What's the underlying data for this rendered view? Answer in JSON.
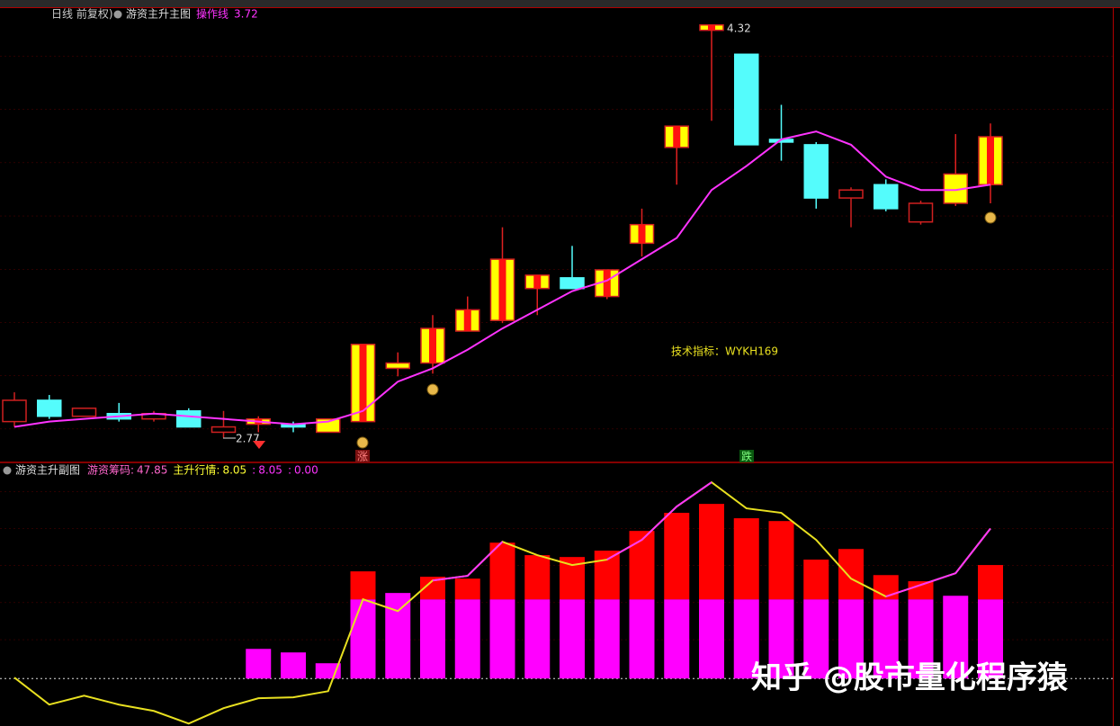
{
  "chart_data": [
    {
      "type": "candlestick",
      "period": "日线 前复权)",
      "title": "游资主升主图",
      "ylim": [
        2.68,
        4.38
      ],
      "open": [
        2.83,
        2.91,
        2.85,
        2.86,
        2.84,
        2.87,
        2.79,
        2.82,
        2.82,
        2.79,
        2.83,
        3.03,
        3.05,
        3.17,
        3.21,
        3.33,
        3.37,
        3.3,
        3.5,
        3.86,
        4.3,
        4.21,
        3.89,
        3.87,
        3.67,
        3.72,
        3.58,
        3.65,
        3.72
      ],
      "high": [
        2.94,
        2.93,
        2.88,
        2.9,
        2.87,
        2.88,
        2.87,
        2.85,
        2.83,
        2.84,
        3.12,
        3.09,
        3.23,
        3.3,
        3.56,
        3.38,
        3.49,
        3.4,
        3.63,
        3.94,
        4.32,
        4.21,
        4.02,
        3.88,
        3.71,
        3.74,
        3.66,
        3.91,
        3.95
      ],
      "low": [
        2.81,
        2.84,
        2.85,
        2.83,
        2.83,
        2.81,
        2.77,
        2.79,
        2.79,
        2.79,
        2.83,
        3.0,
        3.01,
        3.17,
        3.2,
        3.23,
        3.33,
        3.29,
        3.45,
        3.72,
        3.96,
        3.87,
        3.81,
        3.63,
        3.56,
        3.62,
        3.57,
        3.64,
        3.65
      ],
      "close": [
        2.91,
        2.85,
        2.88,
        2.84,
        2.86,
        2.81,
        2.81,
        2.84,
        2.81,
        2.84,
        3.12,
        3.05,
        3.18,
        3.25,
        3.44,
        3.38,
        3.33,
        3.4,
        3.57,
        3.94,
        4.32,
        3.87,
        3.88,
        3.67,
        3.7,
        3.63,
        3.65,
        3.76,
        3.9
      ],
      "candle_styles": [
        "hollow",
        "cyan",
        "hollow",
        "cyan",
        "hollow",
        "cyan",
        "hollow",
        "striped",
        "cyan",
        "yellow",
        "striped",
        "yellow",
        "striped",
        "striped",
        "striped",
        "striped",
        "cyan",
        "striped",
        "striped",
        "striped",
        "striped",
        "cyan",
        "cyan",
        "cyan",
        "hollow",
        "cyan",
        "hollow",
        "yellow",
        "striped"
      ],
      "lines": [
        {
          "name": "操作线",
          "color": "#ff33ff",
          "values": [
            2.81,
            2.83,
            2.84,
            2.85,
            2.86,
            2.85,
            2.84,
            2.83,
            2.82,
            2.83,
            2.87,
            2.98,
            3.03,
            3.1,
            3.18,
            3.25,
            3.32,
            3.36,
            3.44,
            3.52,
            3.7,
            3.79,
            3.89,
            3.92,
            3.87,
            3.75,
            3.7,
            3.7,
            3.72
          ]
        }
      ],
      "high_label": "4.32",
      "low_label": "2.77",
      "indicator_note": "技术指标：WYKH169",
      "signals": [
        "涨",
        "跌"
      ]
    },
    {
      "type": "bar",
      "title": "游资主升副图",
      "header_items": [
        {
          "label": "游资筹码:",
          "value": "47.85",
          "color": "#ff66cc"
        },
        {
          "label": "主升行情:",
          "value": "8.05",
          "color": "#ffff33"
        },
        {
          "label": ":",
          "value": "8.05",
          "color": "#ff33ff"
        },
        {
          "label": ":",
          "value": "0.00",
          "color": "#ff33ff"
        }
      ],
      "ylim": [
        -2.5,
        11.5
      ],
      "series": [
        {
          "color": "#ff00ff",
          "values": [
            null,
            null,
            null,
            null,
            null,
            null,
            null,
            1.59,
            1.4,
            0.82,
            4.25,
            4.59,
            4.25,
            4.25,
            4.25,
            4.25,
            4.25,
            4.25,
            4.25,
            4.25,
            4.25,
            4.25,
            4.25,
            4.25,
            4.25,
            4.25,
            4.25,
            4.44,
            4.25
          ]
        },
        {
          "color": "#ff0000",
          "values": [
            null,
            null,
            null,
            null,
            null,
            null,
            null,
            null,
            null,
            null,
            1.5,
            null,
            1.21,
            1.11,
            3.04,
            2.37,
            2.27,
            2.61,
            3.67,
            4.64,
            5.12,
            4.35,
            4.2,
            2.13,
            2.7,
            1.3,
            0.97,
            null,
            1.84
          ]
        }
      ],
      "lines": [
        {
          "color": "#e8e020",
          "values": [
            0.05,
            -1.4,
            -0.92,
            -1.4,
            -1.74,
            -2.42,
            -1.59,
            -1.06,
            -1.01,
            -0.68,
            4.25,
            3.62,
            5.26,
            5.51,
            7.34,
            6.62,
            6.09,
            6.38,
            7.44,
            9.23,
            10.53,
            9.13,
            8.89,
            7.44,
            5.36,
            4.4,
            5.02,
            5.65,
            8.05
          ]
        },
        {
          "color": "#ff33ff",
          "values": [
            null,
            null,
            null,
            null,
            null,
            null,
            null,
            null,
            null,
            null,
            null,
            null,
            5.26,
            5.51,
            7.34,
            null,
            null,
            6.38,
            7.44,
            9.23,
            10.53,
            null,
            null,
            null,
            null,
            4.4,
            5.02,
            5.65,
            8.05
          ]
        }
      ]
    }
  ],
  "watermark": "知乎 @股市量化程序猿"
}
